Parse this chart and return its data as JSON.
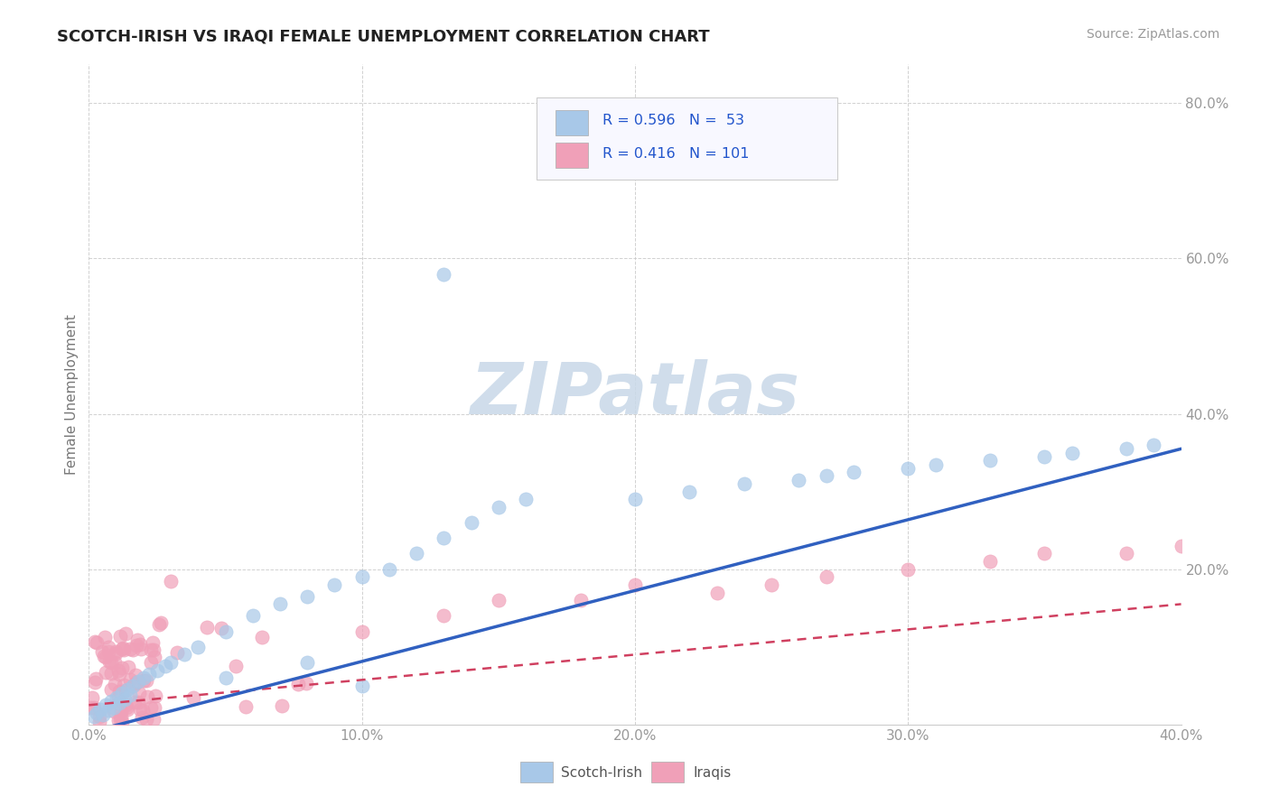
{
  "title": "SCOTCH-IRISH VS IRAQI FEMALE UNEMPLOYMENT CORRELATION CHART",
  "source": "Source: ZipAtlas.com",
  "ylabel": "Female Unemployment",
  "xlim": [
    0.0,
    0.4
  ],
  "ylim": [
    0.0,
    0.85
  ],
  "xticks": [
    0.0,
    0.1,
    0.2,
    0.3,
    0.4
  ],
  "yticks": [
    0.0,
    0.2,
    0.4,
    0.6,
    0.8
  ],
  "xtick_labels": [
    "0.0%",
    "10.0%",
    "20.0%",
    "30.0%",
    "40.0%"
  ],
  "ytick_labels": [
    "",
    "20.0%",
    "40.0%",
    "60.0%",
    "80.0%"
  ],
  "scotch_irish_color": "#a8c8e8",
  "iraqis_color": "#f0a0b8",
  "scotch_irish_line_color": "#3060c0",
  "iraqis_line_color": "#d04060",
  "scotch_irish_R": 0.596,
  "scotch_irish_N": 53,
  "iraqis_R": 0.416,
  "iraqis_N": 101,
  "watermark_color": "#c8d8e8",
  "background_color": "#ffffff",
  "grid_color": "#cccccc",
  "tick_color": "#999999",
  "title_color": "#222222",
  "source_color": "#999999",
  "legend_text_color": "#2255cc"
}
